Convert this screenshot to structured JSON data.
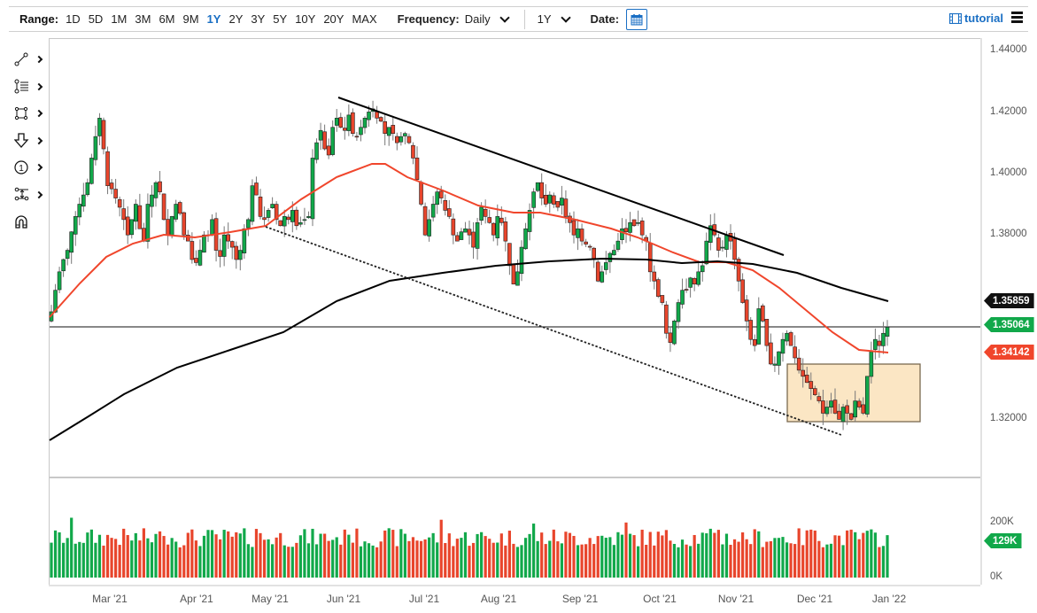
{
  "toolbar": {
    "range_label": "Range:",
    "ranges": [
      "1D",
      "5D",
      "1M",
      "3M",
      "6M",
      "9M",
      "1Y",
      "2Y",
      "3Y",
      "5Y",
      "10Y",
      "20Y",
      "MAX"
    ],
    "active_range": "1Y",
    "frequency_label": "Frequency:",
    "frequency_value": "Daily",
    "period_value": "1Y",
    "date_label": "Date:",
    "tutorial_label": "tutorial"
  },
  "tools": [
    {
      "name": "trendline-tool-icon",
      "glyph": "line"
    },
    {
      "name": "fibonacci-tool-icon",
      "glyph": "fib"
    },
    {
      "name": "rectangle-tool-icon",
      "glyph": "rect"
    },
    {
      "name": "arrow-down-tool-icon",
      "glyph": "arrow"
    },
    {
      "name": "numbered-annotation-tool-icon",
      "glyph": "one"
    },
    {
      "name": "measure-tool-icon",
      "glyph": "measure"
    },
    {
      "name": "magnet-tool-icon",
      "glyph": "magnet"
    }
  ],
  "colors": {
    "up": "#11a84a",
    "down": "#e8452c",
    "ma_short": "#f0462c",
    "ma_long": "#000000",
    "accent": "#1a6fc4",
    "box_fill": "#fbe6c4",
    "box_stroke": "#7a6a50"
  },
  "chart_data": {
    "type": "candlestick",
    "title": "",
    "y_ticks": [
      "1.44000",
      "1.42000",
      "1.40000",
      "1.38000",
      "1.32000"
    ],
    "ylim": [
      1.305,
      1.445
    ],
    "x_ticks": [
      "Mar '21",
      "Apr '21",
      "May '21",
      "Jun '21",
      "Jul '21",
      "Aug '21",
      "Sep '21",
      "Oct '21",
      "Nov '21",
      "Dec '21",
      "Jan '22"
    ],
    "price_tags": {
      "ma_long": "1.35859",
      "last": "1.35064",
      "ma_short": "1.34142"
    },
    "volume_ticks": [
      "200K",
      "0K"
    ],
    "volume_tag": "129K",
    "closes_path": [
      1.355,
      1.362,
      1.368,
      1.372,
      1.375,
      1.381,
      1.386,
      1.39,
      1.393,
      1.397,
      1.405,
      1.412,
      1.418,
      1.408,
      1.396,
      1.395,
      1.392,
      1.389,
      1.385,
      1.38,
      1.385,
      1.39,
      1.382,
      1.378,
      1.39,
      1.393,
      1.397,
      1.394,
      1.385,
      1.38,
      1.386,
      1.39,
      1.387,
      1.38,
      1.378,
      1.372,
      1.371,
      1.375,
      1.38,
      1.38,
      1.385,
      1.375,
      1.373,
      1.38,
      1.378,
      1.376,
      1.372,
      1.375,
      1.382,
      1.385,
      1.396,
      1.393,
      1.386,
      1.385,
      1.388,
      1.39,
      1.385,
      1.383,
      1.386,
      1.385,
      1.388,
      1.383,
      1.384,
      1.385,
      1.386,
      1.405,
      1.41,
      1.414,
      1.408,
      1.406,
      1.415,
      1.418,
      1.415,
      1.414,
      1.419,
      1.413,
      1.412,
      1.415,
      1.418,
      1.42,
      1.421,
      1.418,
      1.417,
      1.413,
      1.415,
      1.413,
      1.41,
      1.412,
      1.413,
      1.41,
      1.405,
      1.398,
      1.39,
      1.38,
      1.385,
      1.39,
      1.394,
      1.392,
      1.388,
      1.386,
      1.38,
      1.378,
      1.381,
      1.382,
      1.38,
      1.376,
      1.384,
      1.389,
      1.386,
      1.384,
      1.38,
      1.386,
      1.384,
      1.378,
      1.37,
      1.364,
      1.368,
      1.376,
      1.382,
      1.388,
      1.394,
      1.397,
      1.392,
      1.39,
      1.393,
      1.39,
      1.389,
      1.392,
      1.386,
      1.384,
      1.38,
      1.382,
      1.378,
      1.377,
      1.376,
      1.372,
      1.365,
      1.368,
      1.371,
      1.374,
      1.375,
      1.378,
      1.382,
      1.381,
      1.384,
      1.383,
      1.384,
      1.38,
      1.378,
      1.368,
      1.365,
      1.36,
      1.358,
      1.348,
      1.345,
      1.352,
      1.358,
      1.362,
      1.362,
      1.366,
      1.364,
      1.368,
      1.37,
      1.378,
      1.383,
      1.38,
      1.375,
      1.376,
      1.38,
      1.378,
      1.372,
      1.365,
      1.358,
      1.352,
      1.346,
      1.344,
      1.356,
      1.352,
      1.344,
      1.338,
      1.338,
      1.342,
      1.346,
      1.348,
      1.344,
      1.34,
      1.336,
      1.334,
      1.332,
      1.33,
      1.328,
      1.326,
      1.322,
      1.324,
      1.326,
      1.322,
      1.32,
      1.324,
      1.322,
      1.32,
      1.326,
      1.324,
      1.322,
      1.334,
      1.342,
      1.346,
      1.344,
      1.348,
      1.35
    ]
  }
}
